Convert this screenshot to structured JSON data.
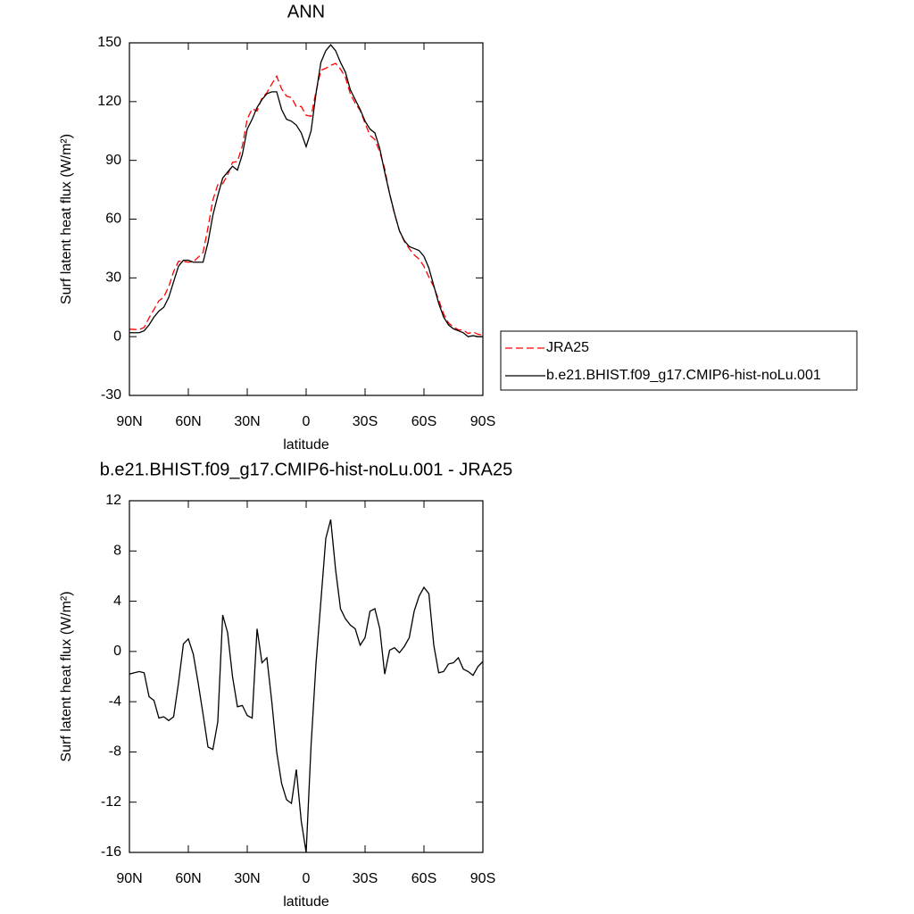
{
  "chart_data": [
    {
      "type": "line",
      "title": "ANN",
      "xlabel": "latitude",
      "ylabel": "Surf latent heat flux (W/m²)",
      "xlim": [
        90,
        -90
      ],
      "xticks": [
        {
          "value": 90,
          "label": "90N"
        },
        {
          "value": 60,
          "label": "60N"
        },
        {
          "value": 30,
          "label": "30N"
        },
        0,
        {
          "value": -30,
          "label": "30S"
        },
        {
          "value": -60,
          "label": "60S"
        },
        {
          "value": -90,
          "label": "90S"
        }
      ],
      "ylim": [
        -30,
        150
      ],
      "yticks": [
        -30,
        0,
        30,
        60,
        90,
        120,
        150
      ],
      "legend": "right",
      "x": [
        90,
        87.5,
        85,
        82.5,
        80,
        77.5,
        75,
        72.5,
        70,
        67.5,
        65,
        62.5,
        60,
        57.5,
        55,
        52.5,
        50,
        47.5,
        45,
        42.5,
        40,
        37.5,
        35,
        32.5,
        30,
        27.5,
        25,
        22.5,
        20,
        17.5,
        15,
        12.5,
        10,
        7.5,
        5,
        2.5,
        0,
        -2.5,
        -5,
        -7.5,
        -10,
        -12.5,
        -15,
        -17.5,
        -20,
        -22.5,
        -25,
        -27.5,
        -30,
        -32.5,
        -35,
        -37.5,
        -40,
        -42.5,
        -45,
        -47.5,
        -50,
        -52.5,
        -55,
        -57.5,
        -60,
        -62.5,
        -65,
        -67.5,
        -70,
        -72.5,
        -75,
        -77.5,
        -80,
        -82.5,
        -85,
        -87.5,
        -90
      ],
      "series": [
        {
          "name": "JRA25",
          "color": "#ff0000",
          "linestyle": "dashed",
          "values": [
            3.8,
            3.7,
            3.6,
            4.7,
            9.6,
            13.9,
            18.3,
            20.2,
            25.5,
            33.2,
            38.5,
            38.4,
            38,
            38.2,
            40.5,
            43,
            55.6,
            69.8,
            77.6,
            78.1,
            82.5,
            89,
            89.4,
            97.3,
            111.1,
            116.3,
            115.2,
            121.9,
            124.5,
            129,
            133,
            126.5,
            122.8,
            122.1,
            117.4,
            117.5,
            113,
            112.5,
            125,
            136,
            137,
            138.5,
            139.5,
            136.6,
            132.4,
            123.9,
            119.2,
            115.5,
            108.9,
            102.8,
            100.6,
            94.2,
            85.8,
            72.9,
            62.7,
            54.1,
            48.6,
            44.9,
            41.8,
            39.6,
            35.9,
            30.4,
            25.5,
            18.7,
            11.6,
            7,
            4.9,
            3.5,
            3.4,
            1.6,
            2.4,
            1.2,
            0.8
          ]
        },
        {
          "name": "b.e21.BHIST.f09_g17.CMIP6-hist-noLu.001",
          "color": "#000000",
          "linestyle": "solid",
          "values": [
            2,
            2,
            2,
            3,
            6,
            10,
            13,
            15,
            20,
            28,
            36,
            39,
            39,
            38,
            38,
            38,
            48,
            62,
            72,
            81,
            84,
            87,
            85,
            93,
            106,
            111,
            117,
            121,
            124,
            125,
            125,
            116,
            111,
            110,
            108,
            104,
            97,
            105,
            124,
            140,
            146,
            149,
            146,
            140,
            135,
            126,
            121,
            116,
            110,
            106,
            104,
            96,
            84,
            73,
            63,
            54,
            49,
            46,
            45,
            44,
            41,
            35,
            26,
            17,
            10,
            6,
            4,
            3,
            2,
            0,
            0.5,
            0,
            0
          ]
        }
      ]
    },
    {
      "type": "line",
      "title": "b.e21.BHIST.f09_g17.CMIP6-hist-noLu.001 - JRA25",
      "xlabel": "latitude",
      "ylabel": "Surf latent heat flux (W/m²)",
      "xlim": [
        90,
        -90
      ],
      "xticks": [
        {
          "value": 90,
          "label": "90N"
        },
        {
          "value": 60,
          "label": "60N"
        },
        {
          "value": 30,
          "label": "30N"
        },
        0,
        {
          "value": -30,
          "label": "30S"
        },
        {
          "value": -60,
          "label": "60S"
        },
        {
          "value": -90,
          "label": "90S"
        }
      ],
      "ylim": [
        -16,
        12
      ],
      "yticks": [
        -16,
        -12,
        -8,
        -4,
        0,
        4,
        8,
        12
      ],
      "color": "#000000",
      "x": [
        90,
        87.5,
        85,
        82.5,
        80,
        77.5,
        75,
        72.5,
        70,
        67.5,
        65,
        62.5,
        60,
        57.5,
        55,
        52.5,
        50,
        47.5,
        45,
        42.5,
        40,
        37.5,
        35,
        32.5,
        30,
        27.5,
        25,
        22.5,
        20,
        17.5,
        15,
        12.5,
        10,
        7.5,
        5,
        2.5,
        0,
        -2.5,
        -5,
        -7.5,
        -10,
        -12.5,
        -15,
        -17.5,
        -20,
        -22.5,
        -25,
        -27.5,
        -30,
        -32.5,
        -35,
        -37.5,
        -40,
        -42.5,
        -45,
        -47.5,
        -50,
        -52.5,
        -55,
        -57.5,
        -60,
        -62.5,
        -65,
        -67.5,
        -70,
        -72.5,
        -75,
        -77.5,
        -80,
        -82.5,
        -85,
        -87.5,
        -90
      ],
      "values": [
        -1.8,
        -1.7,
        -1.6,
        -1.7,
        -3.6,
        -3.9,
        -5.3,
        -5.2,
        -5.5,
        -5.2,
        -2.5,
        0.6,
        1.0,
        -0.2,
        -2.5,
        -5,
        -7.6,
        -7.8,
        -5.6,
        2.9,
        1.5,
        -2,
        -4.4,
        -4.3,
        -5.1,
        -5.3,
        1.8,
        -0.9,
        -0.5,
        -4,
        -8,
        -10.5,
        -11.8,
        -12.1,
        -9.4,
        -13.5,
        -16,
        -7.5,
        -1,
        4,
        9,
        10.5,
        6.5,
        3.4,
        2.6,
        2.1,
        1.8,
        0.5,
        1.1,
        3.2,
        3.4,
        1.8,
        -1.8,
        0.1,
        0.3,
        -0.1,
        0.4,
        1.1,
        3.2,
        4.4,
        5.1,
        4.6,
        0.5,
        -1.7,
        -1.6,
        -1.0,
        -0.9,
        -0.5,
        -1.4,
        -1.6,
        -1.9,
        -1.2,
        -0.8
      ]
    }
  ]
}
